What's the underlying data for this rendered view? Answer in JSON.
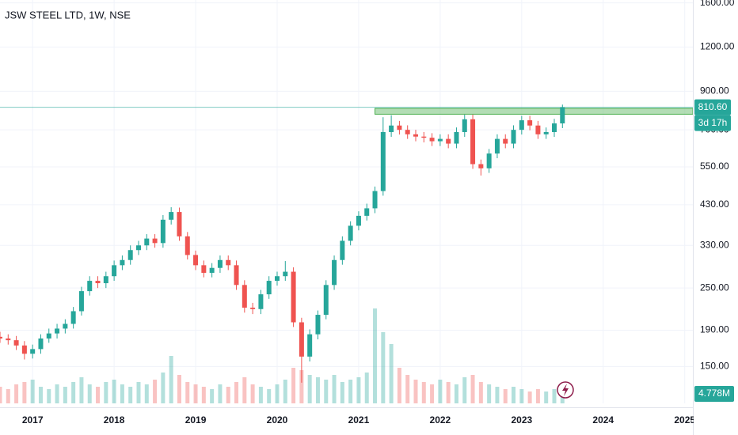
{
  "chart_data": {
    "type": "candlestick",
    "title": "JSW STEEL LTD, 1W, NSE",
    "log_scale": true,
    "grid": true,
    "up_color": "#26a69a",
    "down_color": "#ef5350",
    "xlim": [
      2016.6,
      2025.1
    ],
    "xticks": [
      2017,
      2018,
      2019,
      2020,
      2021,
      2022,
      2023,
      2024,
      2025
    ],
    "ylim": [
      118,
      1630
    ],
    "yticks": [
      {
        "value": 150,
        "label": "150.00"
      },
      {
        "value": 190,
        "label": "190.00"
      },
      {
        "value": 250,
        "label": "250.00"
      },
      {
        "value": 330,
        "label": "330.00"
      },
      {
        "value": 430,
        "label": "430.00"
      },
      {
        "value": 550,
        "label": "550.00"
      },
      {
        "value": 700,
        "label": "700.00"
      },
      {
        "value": 900,
        "label": "900.00"
      },
      {
        "value": 1200,
        "label": "1200.00"
      },
      {
        "value": 1600,
        "label": "1600.00"
      }
    ],
    "x": [
      2016.6,
      2016.7,
      2016.8,
      2016.9,
      2017.0,
      2017.1,
      2017.2,
      2017.3,
      2017.4,
      2017.5,
      2017.6,
      2017.7,
      2017.8,
      2017.9,
      2018.0,
      2018.1,
      2018.2,
      2018.3,
      2018.4,
      2018.5,
      2018.6,
      2018.7,
      2018.8,
      2018.9,
      2019.0,
      2019.1,
      2019.2,
      2019.3,
      2019.4,
      2019.5,
      2019.6,
      2019.7,
      2019.8,
      2019.9,
      2020.0,
      2020.1,
      2020.2,
      2020.3,
      2020.4,
      2020.5,
      2020.6,
      2020.7,
      2020.8,
      2020.9,
      2021.0,
      2021.1,
      2021.2,
      2021.3,
      2021.4,
      2021.5,
      2021.6,
      2021.7,
      2021.8,
      2021.9,
      2022.0,
      2022.1,
      2022.2,
      2022.3,
      2022.4,
      2022.5,
      2022.6,
      2022.7,
      2022.8,
      2022.9,
      2023.0,
      2023.1,
      2023.2,
      2023.3,
      2023.4,
      2023.5
    ],
    "open": [
      182,
      180,
      178,
      172,
      163,
      168,
      180,
      186,
      192,
      198,
      215,
      245,
      262,
      258,
      270,
      290,
      300,
      320,
      330,
      345,
      335,
      390,
      410,
      350,
      310,
      290,
      276,
      285,
      300,
      290,
      255,
      220,
      218,
      240,
      262,
      270,
      278,
      200,
      160,
      185,
      210,
      255,
      300,
      340,
      375,
      400,
      420,
      470,
      690,
      720,
      700,
      680,
      670,
      665,
      650,
      660,
      640,
      690,
      750,
      560,
      545,
      600,
      660,
      640,
      700,
      745,
      720,
      680,
      690,
      730
    ],
    "high": [
      188,
      185,
      183,
      177,
      173,
      185,
      192,
      198,
      204,
      221,
      252,
      270,
      270,
      278,
      299,
      309,
      330,
      340,
      355,
      355,
      402,
      423,
      422,
      360,
      319,
      299,
      294,
      309,
      309,
      299,
      263,
      227,
      247,
      270,
      278,
      298,
      286,
      206,
      191,
      216,
      263,
      309,
      350,
      386,
      412,
      433,
      484,
      760,
      770,
      742,
      721,
      700,
      690,
      685,
      680,
      680,
      711,
      773,
      773,
      577,
      618,
      680,
      680,
      721,
      767,
      767,
      742,
      711,
      752,
      825
    ],
    "low": [
      175,
      173,
      167,
      157,
      158,
      163,
      175,
      180,
      186,
      192,
      209,
      238,
      250,
      250,
      262,
      281,
      291,
      310,
      320,
      325,
      325,
      378,
      340,
      301,
      281,
      268,
      268,
      276,
      281,
      247,
      213,
      211,
      211,
      233,
      254,
      262,
      194,
      135,
      155,
      179,
      204,
      247,
      291,
      330,
      364,
      388,
      407,
      456,
      669,
      679,
      660,
      650,
      645,
      630,
      630,
      621,
      621,
      669,
      543,
      520,
      529,
      582,
      621,
      621,
      679,
      698,
      660,
      660,
      669,
      708
    ],
    "close": [
      180,
      178,
      172,
      163,
      168,
      180,
      186,
      192,
      198,
      215,
      245,
      262,
      258,
      270,
      290,
      300,
      320,
      330,
      345,
      335,
      390,
      410,
      350,
      310,
      290,
      276,
      285,
      300,
      290,
      255,
      220,
      218,
      240,
      262,
      270,
      278,
      200,
      160,
      185,
      210,
      255,
      300,
      340,
      375,
      400,
      420,
      470,
      690,
      720,
      700,
      680,
      670,
      665,
      650,
      660,
      640,
      690,
      750,
      560,
      545,
      600,
      660,
      640,
      700,
      745,
      720,
      680,
      690,
      730,
      810.6
    ],
    "volume": [
      7,
      6,
      8,
      9,
      10,
      7,
      6,
      8,
      7,
      9,
      11,
      8,
      7,
      9,
      10,
      8,
      7,
      9,
      8,
      10,
      13,
      20,
      12,
      9,
      8,
      7,
      6,
      8,
      7,
      9,
      11,
      8,
      7,
      6,
      8,
      10,
      15,
      14,
      12,
      11,
      10,
      12,
      9,
      10,
      11,
      13,
      40,
      30,
      25,
      15,
      12,
      10,
      9,
      8,
      10,
      9,
      8,
      11,
      12,
      9,
      8,
      7,
      6,
      7,
      6,
      5,
      6,
      5,
      6,
      4.778
    ],
    "vlim": [
      0,
      45
    ],
    "last_price": {
      "value": 810.6,
      "label": "810.60"
    },
    "countdown": "3d 17h",
    "last_volume": {
      "value": 4.778,
      "label": "4.778M"
    },
    "zone": {
      "x_start": 2021.2,
      "ylim": [
        775,
        805
      ]
    }
  }
}
